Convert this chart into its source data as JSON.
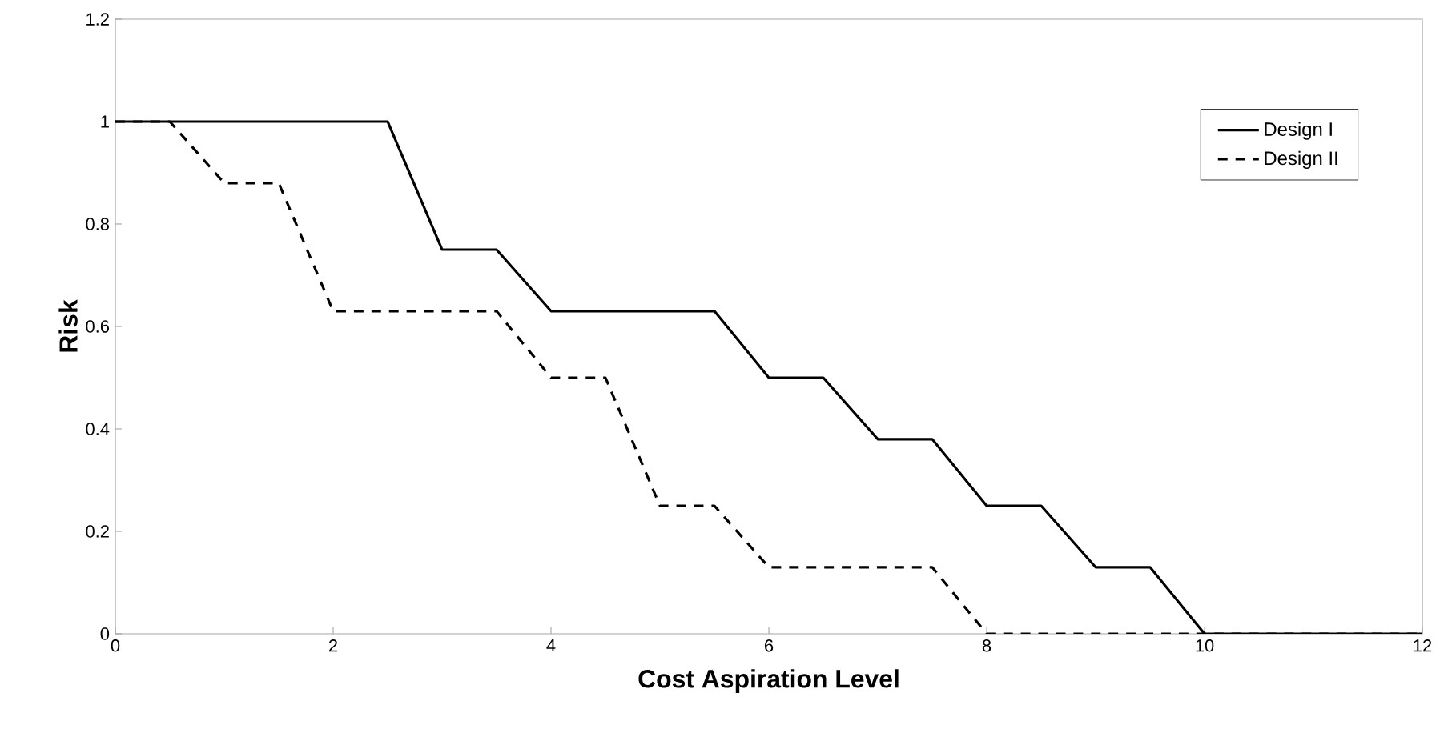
{
  "chart_data": {
    "type": "line",
    "xlabel": "Cost Aspiration Level",
    "ylabel": "Risk",
    "xlim": [
      0,
      12
    ],
    "ylim": [
      0,
      1.2
    ],
    "xticks": [
      0,
      2,
      4,
      6,
      8,
      10,
      12
    ],
    "yticks": [
      0,
      0.2,
      0.4,
      0.6,
      0.8,
      1,
      1.2
    ],
    "legend": "top right",
    "grid": false,
    "marker": "none",
    "series": [
      {
        "name": "Design I",
        "color": "#000000",
        "line_style": "solid",
        "x": [
          0,
          2.5,
          3,
          3.5,
          4,
          5.5,
          6,
          6.5,
          7,
          7.5,
          8,
          8.5,
          9,
          9.5,
          10,
          12
        ],
        "values": [
          1,
          1,
          0.75,
          0.75,
          0.63,
          0.63,
          0.5,
          0.5,
          0.38,
          0.38,
          0.25,
          0.25,
          0.13,
          0.13,
          0,
          0
        ]
      },
      {
        "name": "Design II",
        "color": "#000000",
        "line_style": "dashed",
        "x": [
          0,
          0.5,
          1,
          1.5,
          2,
          3.5,
          4,
          4.5,
          5,
          5.5,
          6,
          7.5,
          8,
          12
        ],
        "values": [
          1,
          1,
          0.88,
          0.88,
          0.63,
          0.63,
          0.5,
          0.5,
          0.25,
          0.25,
          0.13,
          0.13,
          0,
          0
        ]
      }
    ]
  }
}
